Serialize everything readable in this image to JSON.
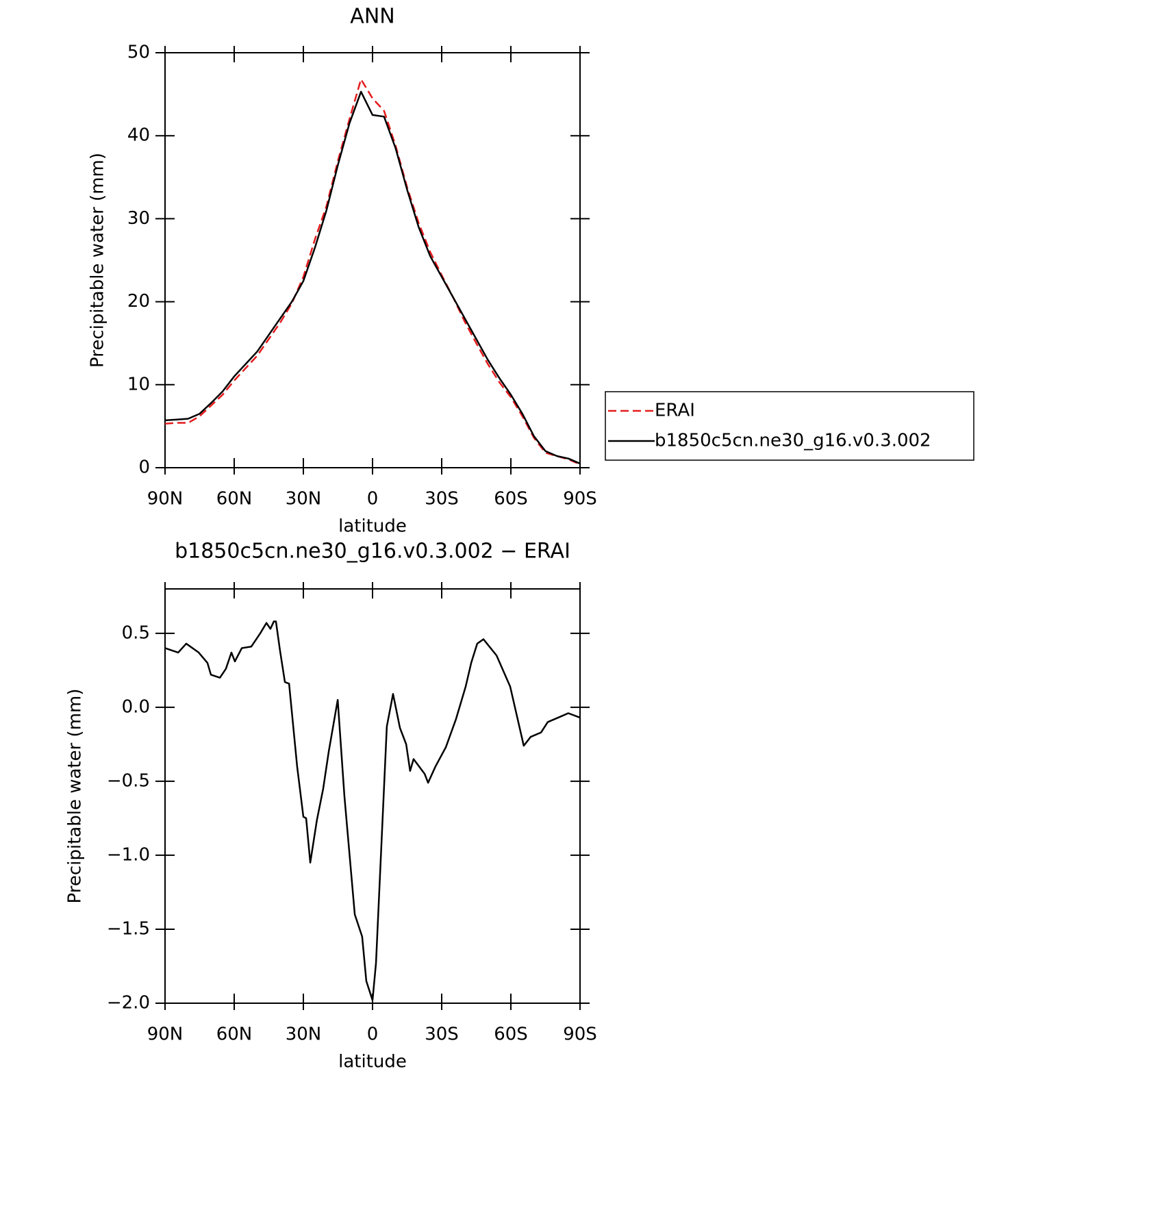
{
  "chart_data": [
    {
      "type": "line",
      "title": "ANN",
      "xlabel": "latitude",
      "ylabel": "Precipitable water (mm)",
      "x": [
        90,
        85,
        80,
        75,
        70,
        65,
        60,
        55,
        50,
        45,
        40,
        35,
        30,
        25,
        20,
        15,
        10,
        5,
        0,
        -5,
        -10,
        -15,
        -20,
        -25,
        -30,
        -35,
        -40,
        -45,
        -50,
        -55,
        -60,
        -65,
        -70,
        -75,
        -80,
        -85,
        -90
      ],
      "series": [
        {
          "name": "ERAI",
          "color": "#e41a1c",
          "dashed": true,
          "values": [
            5.3,
            5.4,
            5.4,
            6.2,
            7.5,
            8.8,
            10.5,
            12.0,
            13.5,
            15.5,
            17.5,
            19.8,
            23.0,
            27.5,
            31.5,
            37.0,
            42.0,
            46.8,
            44.5,
            43.0,
            38.8,
            33.8,
            29.5,
            26.0,
            23.2,
            20.5,
            17.6,
            15.0,
            12.5,
            10.3,
            8.5,
            6.2,
            3.6,
            1.8,
            1.4,
            1.0,
            0.4
          ]
        },
        {
          "name": "b1850c5cn.ne30_g16.v0.3.002",
          "color": "#000000",
          "dashed": false,
          "values": [
            5.7,
            5.8,
            5.9,
            6.5,
            7.8,
            9.2,
            11.0,
            12.5,
            14.0,
            16.0,
            18.0,
            20.0,
            22.5,
            26.5,
            31.0,
            36.5,
            41.5,
            45.3,
            42.5,
            42.3,
            38.5,
            33.5,
            29.0,
            25.5,
            23.0,
            20.5,
            18.0,
            15.5,
            13.0,
            10.8,
            8.8,
            6.5,
            3.8,
            2.0,
            1.4,
            1.1,
            0.5
          ]
        }
      ],
      "xlim": [
        90,
        -90
      ],
      "xticks": [
        {
          "value": 90,
          "label": "90N"
        },
        {
          "value": 60,
          "label": "60N"
        },
        {
          "value": 30,
          "label": "30N"
        },
        0,
        {
          "value": -30,
          "label": "30S"
        },
        {
          "value": -60,
          "label": "60S"
        },
        {
          "value": -90,
          "label": "90S"
        }
      ],
      "ylim": [
        0,
        50
      ],
      "yticks": [
        0,
        10,
        20,
        30,
        40,
        50
      ],
      "legend": "outside-right"
    },
    {
      "type": "line",
      "title": "b1850c5cn.ne30_g16.v0.3.002 − ERAI",
      "xlabel": "latitude",
      "ylabel": "Precipitable water (mm)",
      "x": [
        90,
        84.3,
        80.8,
        75.4,
        71.6,
        70.1,
        66.2,
        63.6,
        61.2,
        59.7,
        56.7,
        52.6,
        48.7,
        46,
        44.3,
        42.8,
        41.9,
        40.1,
        38,
        36.2,
        32.7,
        30,
        28.8,
        27,
        24.1,
        21.4,
        19,
        15.1,
        12.2,
        7.7,
        4.5,
        2.7,
        0,
        -1.5,
        -6.2,
        -8.9,
        -11.9,
        -14.6,
        -16.3,
        -17.8,
        -22.6,
        -24.1,
        -27.3,
        -31.8,
        -36.2,
        -40.4,
        -42.8,
        -45.4,
        -48.1,
        -53.8,
        -59.7,
        -65.6,
        -68.6,
        -73.1,
        -76,
        -82,
        -84.9,
        -90
      ],
      "series": [
        {
          "color": "#000000",
          "dashed": false,
          "values": [
            0.4,
            0.37,
            0.43,
            0.37,
            0.3,
            0.22,
            0.2,
            0.26,
            0.37,
            0.31,
            0.4,
            0.41,
            0.5,
            0.57,
            0.53,
            0.58,
            0.58,
            0.38,
            0.17,
            0.16,
            -0.4,
            -0.74,
            -0.75,
            -1.05,
            -0.76,
            -0.55,
            -0.3,
            0.05,
            -0.6,
            -1.4,
            -1.55,
            -1.85,
            -1.98,
            -1.73,
            -0.13,
            0.09,
            -0.14,
            -0.25,
            -0.43,
            -0.35,
            -0.45,
            -0.51,
            -0.4,
            -0.27,
            -0.08,
            0.14,
            0.3,
            0.43,
            0.46,
            0.35,
            0.14,
            -0.26,
            -0.2,
            -0.17,
            -0.1,
            -0.06,
            -0.04,
            -0.07
          ]
        }
      ],
      "xlim": [
        90,
        -90
      ],
      "xticks": [
        {
          "value": 90,
          "label": "90N"
        },
        {
          "value": 60,
          "label": "60N"
        },
        {
          "value": 30,
          "label": "30N"
        },
        0,
        {
          "value": -30,
          "label": "30S"
        },
        {
          "value": -60,
          "label": "60S"
        },
        {
          "value": -90,
          "label": "90S"
        }
      ],
      "ylim": [
        -2.0,
        0.8
      ],
      "yticks": [
        {
          "value": -2.0,
          "label": "−2.0"
        },
        {
          "value": -1.5,
          "label": "−1.5"
        },
        {
          "value": -1.0,
          "label": "−1.0"
        },
        {
          "value": -0.5,
          "label": "−0.5"
        },
        {
          "value": 0.0,
          "label": "0.0"
        },
        0.5
      ]
    }
  ]
}
